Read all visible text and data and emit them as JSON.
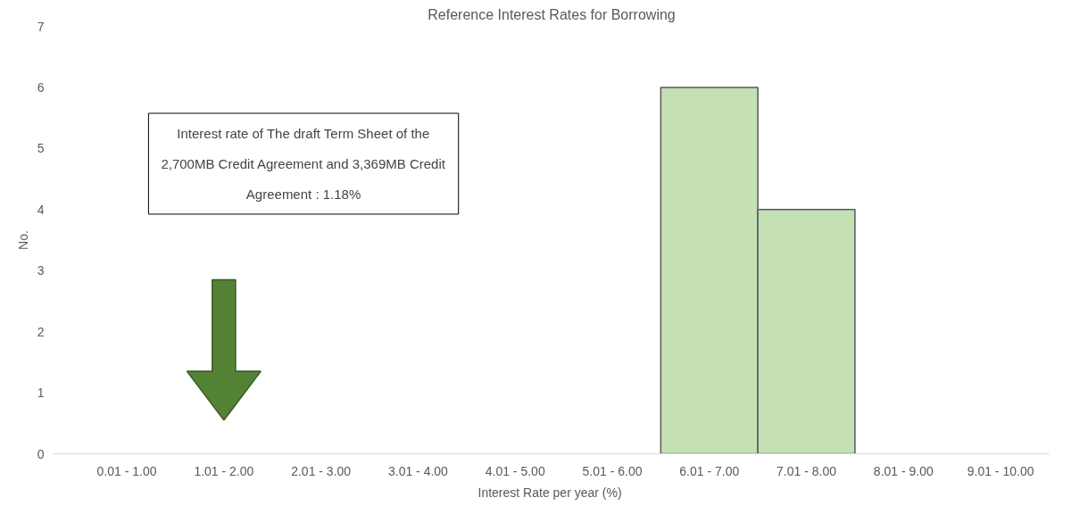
{
  "chart_data": {
    "type": "bar",
    "title": "Reference Interest Rates for Borrowing",
    "xlabel": "Interest Rate per  year (%)",
    "ylabel": "No.",
    "categories": [
      "0.01 - 1.00",
      "1.01 - 2.00",
      "2.01 - 3.00",
      "3.01 - 4.00",
      "4.01 - 5.00",
      "5.01 - 6.00",
      "6.01 - 7.00",
      "7.01 - 8.00",
      "8.01 - 9.00",
      "9.01 - 10.00"
    ],
    "values": [
      0,
      0,
      0,
      0,
      0,
      0,
      6,
      4,
      0,
      0
    ],
    "color": "#c5e0b4",
    "ylim": [
      0,
      7
    ],
    "yticks": [
      0,
      1,
      2,
      3,
      4,
      5,
      6,
      7
    ],
    "grid": false,
    "annotations": [
      "Interest rate of The draft Term Sheet of the 2,700MB Credit Agreement and 3,369MB Credit Agreement : 1.18%"
    ]
  }
}
